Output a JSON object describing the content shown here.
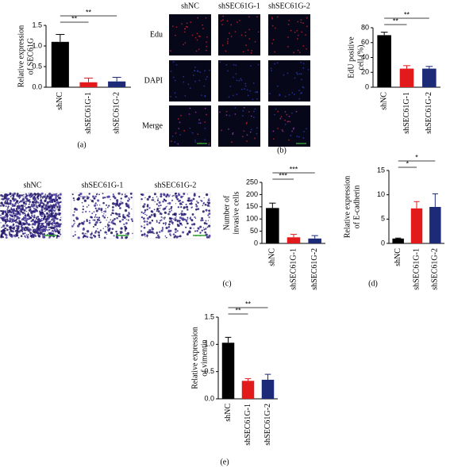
{
  "chart_data": [
    {
      "type": "bar",
      "ylabel": [
        "Relative expression",
        "of SEC61G"
      ],
      "categories": [
        "shNC",
        "shSEC61G-1",
        "shSEC61G-2"
      ],
      "values": [
        1.1,
        0.12,
        0.14
      ],
      "errors": [
        0.18,
        0.1,
        0.1
      ],
      "colors": [
        "#000000",
        "#e31a1c",
        "#1c2a78"
      ],
      "ylim": [
        0,
        1.5
      ],
      "yticks": [
        {
          "value": 0,
          "label": "0.0"
        },
        0.5,
        {
          "value": 1,
          "label": "1.0"
        },
        1.5
      ],
      "significance": [
        "**",
        "**"
      ]
    },
    {
      "type": "bar",
      "ylabel": [
        "EdU positive",
        "cell (%)"
      ],
      "categories": [
        "shNC",
        "shSEC61G-1",
        "shSEC61G-2"
      ],
      "values": [
        70,
        25,
        25
      ],
      "errors": [
        4,
        4,
        3
      ],
      "colors": [
        "#000000",
        "#e31a1c",
        "#1c2a78"
      ],
      "ylim": [
        0,
        80
      ],
      "yticks": [
        0,
        20,
        40,
        60,
        80
      ],
      "significance": [
        "**",
        "**"
      ]
    },
    {
      "type": "bar",
      "ylabel": [
        "Number of",
        "invasive cells"
      ],
      "categories": [
        "shNC",
        "shSEC61G-1",
        "shSEC61G-2"
      ],
      "values": [
        145,
        25,
        20
      ],
      "errors": [
        20,
        12,
        12
      ],
      "colors": [
        "#000000",
        "#e31a1c",
        "#1c2a78"
      ],
      "ylim": [
        0,
        250
      ],
      "yticks": [
        0,
        50,
        100,
        150,
        200,
        250
      ],
      "significance": [
        "***",
        "***"
      ]
    },
    {
      "type": "bar",
      "ylabel": [
        "Relative expression",
        "of E-cadherin"
      ],
      "categories": [
        "shNC",
        "shSEC61G-1",
        "shSEC61G-2"
      ],
      "values": [
        1,
        7.2,
        7.5
      ],
      "errors": [
        0.1,
        1.4,
        2.7
      ],
      "colors": [
        "#000000",
        "#e31a1c",
        "#1c2a78"
      ],
      "ylim": [
        0,
        15
      ],
      "yticks": [
        0,
        5,
        10,
        15
      ],
      "significance": [
        "*",
        "*"
      ]
    },
    {
      "type": "bar",
      "ylabel": [
        "Relative expression",
        "of vimentin"
      ],
      "categories": [
        "shNC",
        "shSEC61G-1",
        "shSEC61G-2"
      ],
      "values": [
        1.03,
        0.33,
        0.35
      ],
      "errors": [
        0.1,
        0.04,
        0.1
      ],
      "colors": [
        "#000000",
        "#e31a1c",
        "#1c2a78"
      ],
      "ylim": [
        0,
        1.5
      ],
      "yticks": [
        {
          "value": 0,
          "label": "0.0"
        },
        0.5,
        {
          "value": 1,
          "label": "1.0"
        },
        1.5
      ],
      "significance": [
        "**",
        "**"
      ]
    }
  ],
  "image_panels": {
    "b": {
      "columns": [
        "shNC",
        "shSEC61G-1",
        "shSEC61G-2"
      ],
      "rows": [
        "Edu",
        "DAPI",
        "Merge"
      ]
    },
    "c": {
      "columns": [
        "shNC",
        "shSEC61G-1",
        "shSEC61G-2"
      ]
    }
  },
  "panel_labels": [
    "(a)",
    "(b)",
    "(c)",
    "(d)",
    "(e)"
  ]
}
